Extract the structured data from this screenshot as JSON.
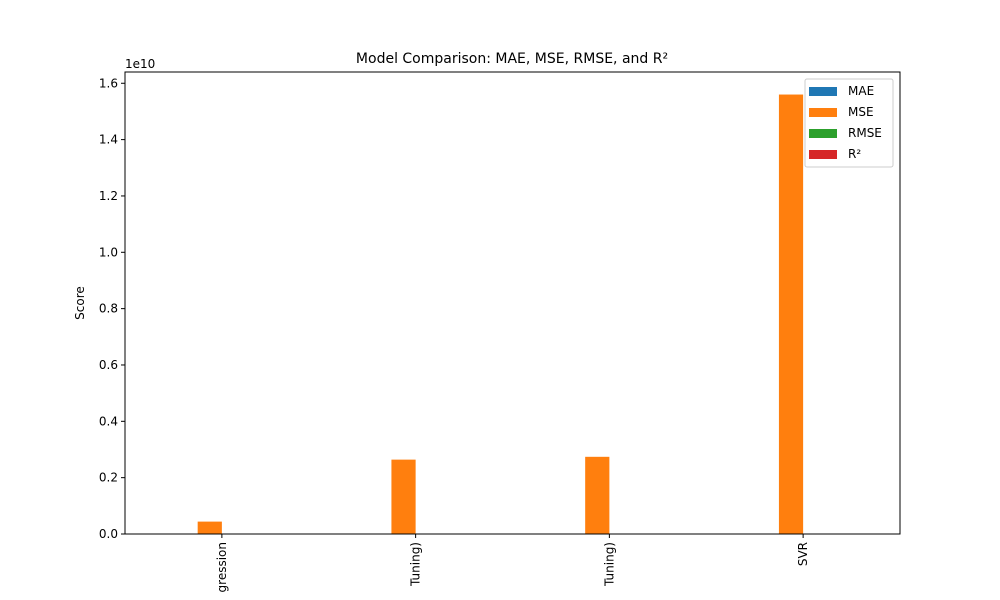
{
  "chart_data": {
    "type": "bar",
    "title": "Model Comparison: MAE, MSE, RMSE, and R²",
    "xlabel": "",
    "ylabel": "Score",
    "offset_label": "1e10",
    "scale": 10000000000,
    "ylim": [
      0,
      1.64
    ],
    "yticks": [
      0.0,
      0.2,
      0.4,
      0.6,
      0.8,
      1.0,
      1.2,
      1.4,
      1.6
    ],
    "categories": [
      "Linear Regression",
      "Random Forest (After Tuning)",
      "XGBoost (After Tuning)",
      "SVR"
    ],
    "visible_category_labels": [
      "gression",
      "Tuning)",
      "Tuning)",
      "SVR"
    ],
    "legend_position": "top-right",
    "grid": false,
    "series": [
      {
        "name": "MAE",
        "color": "#1f77b4",
        "values": [
          0.0,
          0.0,
          0.0,
          0.0
        ]
      },
      {
        "name": "MSE",
        "color": "#ff7f0e",
        "values": [
          0.044,
          0.264,
          0.274,
          1.56
        ]
      },
      {
        "name": "RMSE",
        "color": "#2ca02c",
        "values": [
          0.0,
          0.0,
          0.0,
          0.0
        ]
      },
      {
        "name": "R²",
        "color": "#d62728",
        "values": [
          0.0,
          0.0,
          0.0,
          0.0
        ]
      }
    ]
  }
}
